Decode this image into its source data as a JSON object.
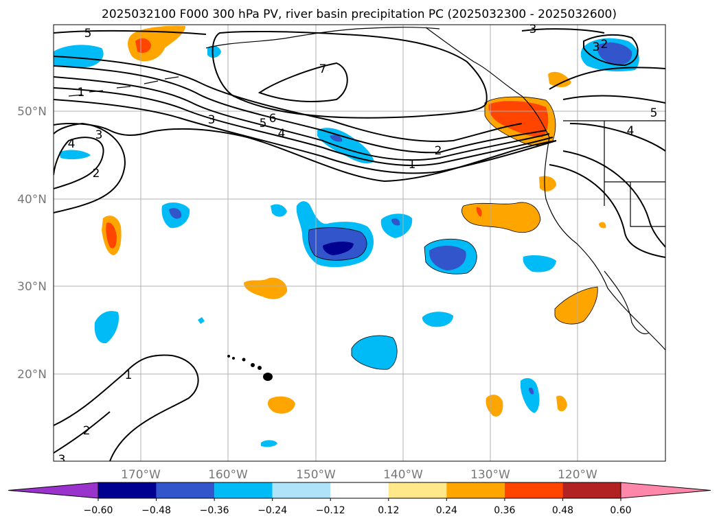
{
  "title": "2025032100 F000 300 hPa PV, river basin precipitation PC (2025032300 - 2025032600)",
  "map": {
    "lat_labels": [
      "50°N",
      "40°N",
      "30°N",
      "20°N"
    ],
    "lon_labels": [
      "170°W",
      "160°W",
      "150°W",
      "140°W",
      "130°W",
      "120°W"
    ],
    "contour_labels": [
      "5",
      "3",
      "7",
      "1",
      "3",
      "5",
      "6",
      "4",
      "2",
      "1",
      "4",
      "3",
      "2",
      "3",
      "2",
      "5",
      "4",
      "1",
      "2",
      "3"
    ]
  },
  "colorbar": {
    "ticks": [
      "−0.60",
      "−0.48",
      "−0.36",
      "−0.24",
      "−0.12",
      "0.12",
      "0.24",
      "0.36",
      "0.48",
      "0.60"
    ],
    "colors": [
      "#9933cc",
      "#000090",
      "#3355cc",
      "#00bbf5",
      "#aee3fa",
      "#ffffff",
      "#ffe88a",
      "#ffa500",
      "#ff4500",
      "#b22222",
      "#ff88aa"
    ]
  }
}
